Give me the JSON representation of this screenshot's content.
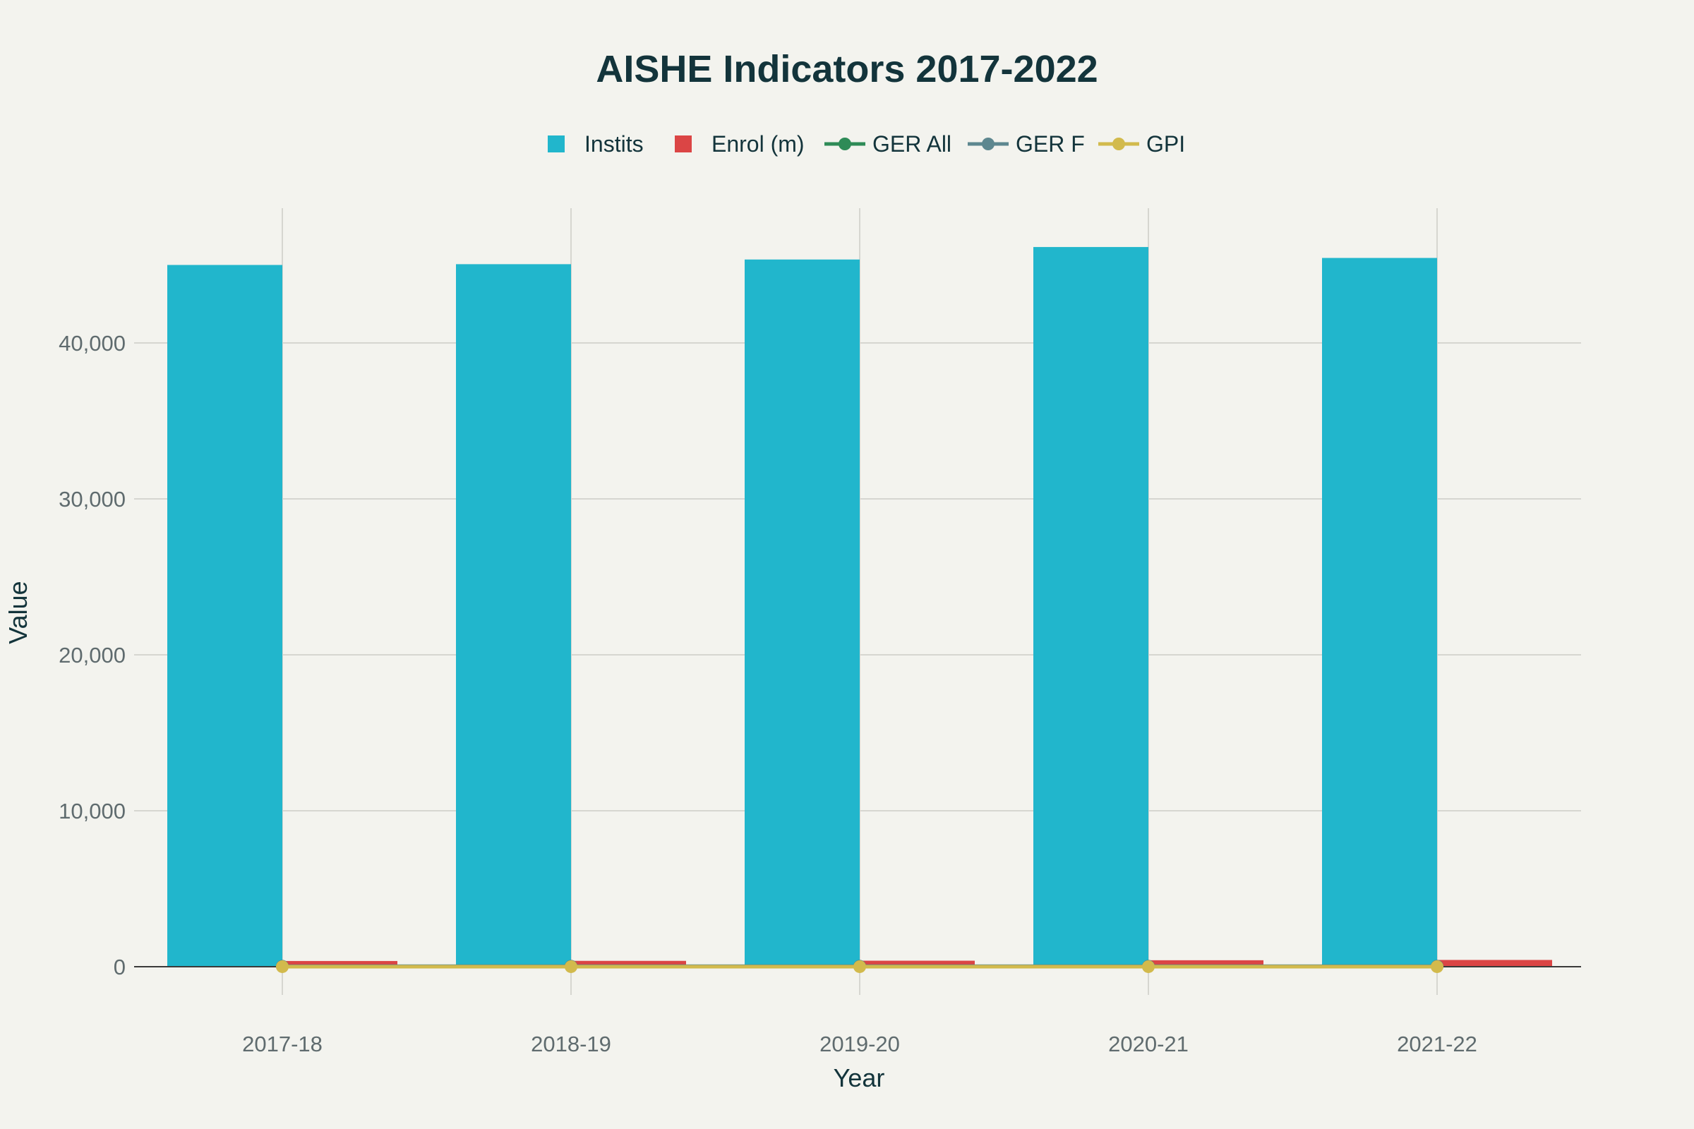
{
  "chart_data": {
    "type": "bar",
    "title": "AISHE Indicators 2017-2022",
    "xlabel": "Year",
    "ylabel": "Value",
    "categories": [
      "2017-18",
      "2018-19",
      "2019-20",
      "2020-21",
      "2021-22"
    ],
    "ylim": [
      -1000,
      48000
    ],
    "yticks": [
      0,
      10000,
      20000,
      30000,
      40000
    ],
    "ytick_labels": [
      "0",
      "10,000",
      "20,000",
      "30,000",
      "40,000"
    ],
    "grid": true,
    "legend_position": "top-center",
    "series": [
      {
        "name": "Instits",
        "kind": "bar",
        "color": "#21b6cc",
        "values": [
          45000,
          45050,
          45350,
          46150,
          45450
        ]
      },
      {
        "name": "Enrol (m)",
        "kind": "bar",
        "color": "#db4545",
        "values": [
          366,
          374,
          385,
          414,
          433
        ]
      },
      {
        "name": "GER All",
        "kind": "line",
        "color": "#2e8b57",
        "values": [
          25.8,
          26.3,
          27.1,
          27.3,
          28.4
        ]
      },
      {
        "name": "GER F",
        "kind": "line",
        "color": "#5d878f",
        "values": [
          25.4,
          26.4,
          27.3,
          27.9,
          28.5
        ]
      },
      {
        "name": "GPI",
        "kind": "line",
        "color": "#d2ba4c",
        "values": [
          0.97,
          1.0,
          1.01,
          1.05,
          1.01
        ]
      }
    ]
  }
}
